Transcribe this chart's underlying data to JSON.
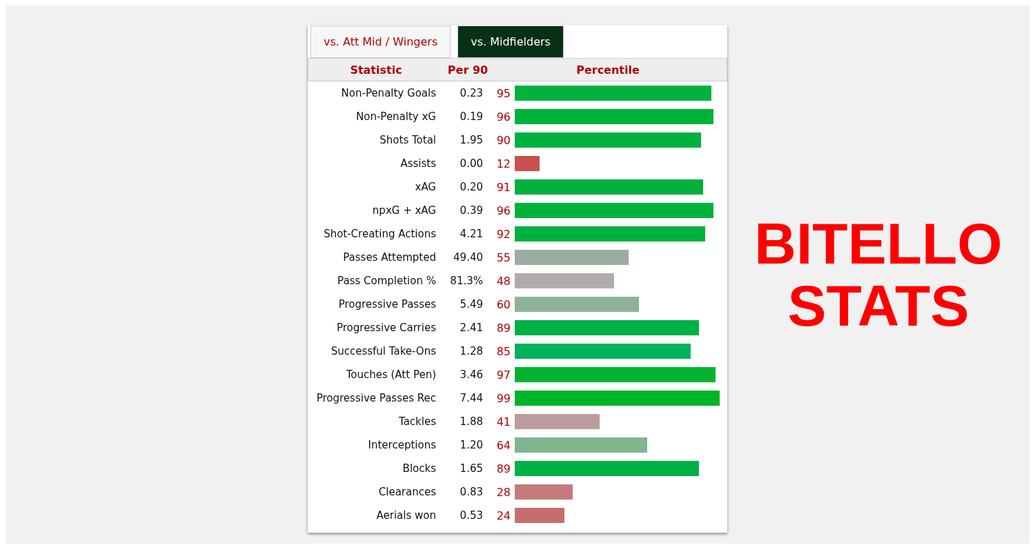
{
  "chart_data": {
    "type": "bar",
    "orientation": "horizontal",
    "title": "BITELLO STATS",
    "ylabel": "Statistic",
    "y2label": "Per 90",
    "xlabel": "Percentile",
    "annotations": [
      "vs. Att Mid / Wingers",
      "vs. Midfielders"
    ],
    "categories": [
      "Non-Penalty Goals",
      "Non-Penalty xG",
      "Shots Total",
      "Assists",
      "xAG",
      "npxG + xAG",
      "Shot-Creating Actions",
      "Passes Attempted",
      "Pass Completion %",
      "Progressive Passes",
      "Progressive Carries",
      "Successful Take-Ons",
      "Touches (Att Pen)",
      "Progressive Passes Rec",
      "Tackles",
      "Interceptions",
      "Blocks",
      "Clearances",
      "Aerials won"
    ],
    "y2_categories": [
      "0.23",
      "0.19",
      "1.95",
      "0.00",
      "0.20",
      "0.39",
      "4.21",
      "49.40",
      "81.3%",
      "5.49",
      "2.41",
      "1.28",
      "3.46",
      "7.44",
      "1.88",
      "1.20",
      "1.65",
      "0.83",
      "0.53"
    ],
    "values": [
      95,
      96,
      90,
      12,
      91,
      96,
      92,
      55,
      48,
      60,
      89,
      85,
      97,
      99,
      41,
      64,
      89,
      28,
      24
    ],
    "colors": [
      "#00b33c",
      "#00b23a",
      "#00b140",
      "#c8504f",
      "#00b13e",
      "#00b23a",
      "#00b13e",
      "#9aada0",
      "#b3aaac",
      "#8cb398",
      "#00b146",
      "#00b359",
      "#00b431",
      "#00b52a",
      "#bc9b9c",
      "#80b590",
      "#00b146",
      "#c47c7b",
      "#c66e6d"
    ],
    "xlim": [
      0,
      100
    ],
    "tick_labels": "y",
    "data_labels": true
  }
}
